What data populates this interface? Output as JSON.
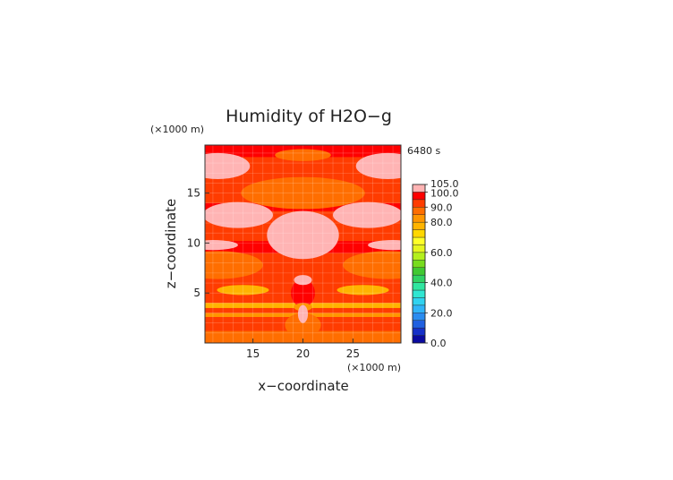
{
  "chart_data": {
    "type": "heatmap",
    "title": "Humidity of H2O−g",
    "time_label": "6480 s",
    "xlabel": "x−coordinate",
    "ylabel": "z−coordinate",
    "x_unit": "(×1000 m)",
    "y_unit": "(×1000 m)",
    "xlim": [
      10.2,
      29.8
    ],
    "ylim": [
      0,
      19.8
    ],
    "x_ticks": [
      15,
      20,
      25
    ],
    "y_ticks": [
      5,
      10,
      15
    ],
    "grid": true,
    "colorbar": {
      "levels": [
        0,
        5,
        10,
        15,
        20,
        25,
        30,
        35,
        40,
        45,
        50,
        55,
        60,
        65,
        70,
        75,
        80,
        85,
        90,
        95,
        100,
        105
      ],
      "labels": [
        "0.0",
        "20.0",
        "40.0",
        "60.0",
        "80.0",
        "90.0",
        "100.0",
        "105.0"
      ],
      "colors": [
        "#0a0aa0",
        "#1530c8",
        "#2060e0",
        "#2a8cf0",
        "#30b4f8",
        "#30d2f0",
        "#30e6d2",
        "#30e6a0",
        "#30d264",
        "#40c832",
        "#78dc1e",
        "#b4f01e",
        "#e6f51e",
        "#ffff28",
        "#ffd700",
        "#ffb400",
        "#ff9600",
        "#ff6e00",
        "#ff3c00",
        "#ff0000",
        "#ffb4b4"
      ]
    },
    "regions": [
      {
        "kind": "band",
        "z": [
          0,
          19.8
        ],
        "value": 92
      },
      {
        "kind": "band",
        "z": [
          0,
          1.2
        ],
        "value": 86
      },
      {
        "kind": "band",
        "z": [
          2.6,
          3.0
        ],
        "value": 84
      },
      {
        "kind": "band",
        "z": [
          3.5,
          4.0
        ],
        "value": 78
      },
      {
        "kind": "band",
        "z": [
          9.0,
          10.2
        ],
        "value": 97
      },
      {
        "kind": "band",
        "z": [
          13.2,
          14.0
        ],
        "value": 97
      },
      {
        "kind": "band",
        "z": [
          18.6,
          19.8
        ],
        "value": 97
      },
      {
        "kind": "blob",
        "x": 20,
        "z": 15,
        "rx": 6.2,
        "rz": 1.6,
        "value": 87
      },
      {
        "kind": "blob",
        "x": 20,
        "z": 11.6,
        "rx": 4.8,
        "rz": 1.2,
        "value": 93
      },
      {
        "kind": "blob",
        "x": 11.5,
        "z": 7.8,
        "rx": 4.5,
        "rz": 1.4,
        "value": 86
      },
      {
        "kind": "blob",
        "x": 28.5,
        "z": 7.8,
        "rx": 4.5,
        "rz": 1.4,
        "value": 86
      },
      {
        "kind": "blob",
        "x": 14,
        "z": 5.3,
        "rx": 2.6,
        "rz": 0.5,
        "value": 78
      },
      {
        "kind": "blob",
        "x": 26,
        "z": 5.3,
        "rx": 2.6,
        "rz": 0.5,
        "value": 78
      },
      {
        "kind": "blob",
        "x": 20,
        "z": 1.8,
        "rx": 1.8,
        "rz": 1.2,
        "value": 86
      },
      {
        "kind": "blob",
        "x": 20,
        "z": 5.0,
        "rx": 1.2,
        "rz": 1.4,
        "value": 97
      },
      {
        "kind": "blob",
        "x": 20,
        "z": 3.6,
        "rx": 0.9,
        "rz": 0.4,
        "value": 80
      },
      {
        "kind": "blob",
        "x": 20,
        "z": 10.8,
        "rx": 3.6,
        "rz": 2.4,
        "value": 102
      },
      {
        "kind": "blob",
        "x": 20,
        "z": 6.3,
        "rx": 0.9,
        "rz": 0.5,
        "value": 102
      },
      {
        "kind": "blob",
        "x": 20,
        "z": 2.9,
        "rx": 0.5,
        "rz": 0.9,
        "value": 102
      },
      {
        "kind": "blob",
        "x": 11.5,
        "z": 17.7,
        "rx": 3.2,
        "rz": 1.3,
        "value": 102
      },
      {
        "kind": "blob",
        "x": 28.5,
        "z": 17.7,
        "rx": 3.2,
        "rz": 1.3,
        "value": 102
      },
      {
        "kind": "blob",
        "x": 13.5,
        "z": 12.8,
        "rx": 3.5,
        "rz": 1.3,
        "value": 102
      },
      {
        "kind": "blob",
        "x": 26.5,
        "z": 12.8,
        "rx": 3.5,
        "rz": 1.3,
        "value": 102
      },
      {
        "kind": "blob",
        "x": 20,
        "z": 18.8,
        "rx": 2.8,
        "rz": 0.6,
        "value": 87
      },
      {
        "kind": "blob",
        "x": 11,
        "z": 9.8,
        "rx": 2.5,
        "rz": 0.5,
        "value": 102
      },
      {
        "kind": "blob",
        "x": 29,
        "z": 9.8,
        "rx": 2.5,
        "rz": 0.5,
        "value": 102
      }
    ]
  }
}
